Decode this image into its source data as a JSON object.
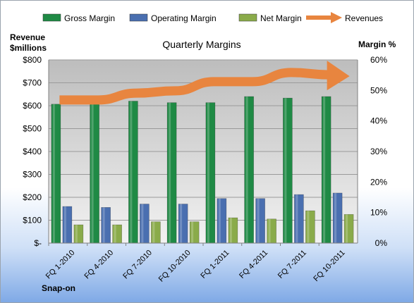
{
  "chart_data": {
    "type": "bar",
    "title": "Quarterly Margins",
    "left_axis_label": [
      "Revenue",
      "$millions"
    ],
    "right_axis_label": "Margin %",
    "source_label": "Snap-on",
    "categories": [
      "FQ 1-2010",
      "FQ 4-2010",
      "FQ 7-2010",
      "FQ 10-2010",
      "FQ 1-2011",
      "FQ 4-2011",
      "FQ 7-2011",
      "FQ 10-2011"
    ],
    "left_ticks": [
      "$-",
      "$100",
      "$200",
      "$300",
      "$400",
      "$500",
      "$600",
      "$700",
      "$800"
    ],
    "right_ticks": [
      "0%",
      "10%",
      "20%",
      "30%",
      "40%",
      "50%",
      "60%"
    ],
    "ylim_left": [
      0,
      800
    ],
    "ylim_right": [
      0,
      60
    ],
    "grid": true,
    "legend_position": "top",
    "series": [
      {
        "name": "Gross Margin",
        "axis": "right",
        "kind": "bar",
        "color": "#1f8a45",
        "values": [
          45.5,
          45.5,
          46.5,
          46,
          46,
          48,
          47.5,
          48
        ]
      },
      {
        "name": "Operating Margin",
        "axis": "right",
        "kind": "bar",
        "color": "#4a6fb0",
        "values": [
          12,
          11.7,
          12.8,
          12.8,
          14.6,
          14.6,
          15.9,
          16.4
        ]
      },
      {
        "name": "Net Margin",
        "axis": "right",
        "kind": "bar",
        "color": "#8aab4a",
        "values": [
          6,
          6,
          7,
          7,
          8.3,
          7.9,
          10.6,
          9.4
        ]
      },
      {
        "name": "Revenues",
        "axis": "left",
        "kind": "arrow-line",
        "color": "#e8853f",
        "values": [
          625,
          625,
          655,
          665,
          705,
          705,
          745,
          735
        ]
      }
    ]
  }
}
